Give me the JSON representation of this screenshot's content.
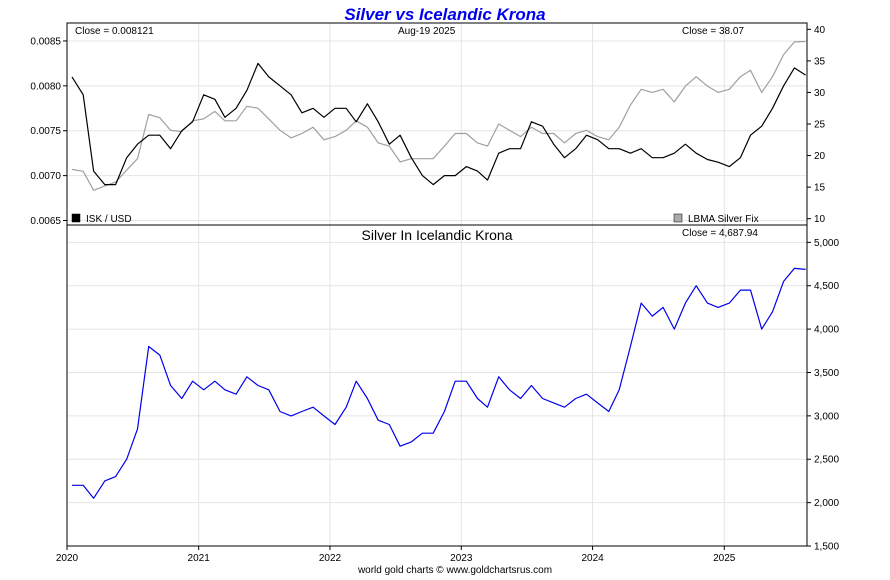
{
  "title": "Silver vs Icelandic Krona",
  "footer": "world gold charts © www.goldchartsrus.com",
  "colors": {
    "title": "#0000ee",
    "isk": "#000000",
    "silver_usd": "#a0a0a0",
    "silver_isk": "#0000ee",
    "grid": "#e4e4e4"
  },
  "chart_data": [
    {
      "type": "line",
      "panel": "top",
      "title": "",
      "date_label": "Aug-19  2025",
      "x_categories": [
        "2020",
        "2021",
        "2022",
        "2023",
        "2024",
        "2025"
      ],
      "xlim": [
        "2020-01-01",
        "2025-08-19"
      ],
      "left_axis": {
        "ylim": [
          0.00645,
          0.0087
        ],
        "ticks": [
          "0.0065",
          "0.0070",
          "0.0075",
          "0.0080",
          "0.0085"
        ]
      },
      "right_axis": {
        "ylim": [
          9,
          41
        ],
        "ticks": [
          "10",
          "15",
          "20",
          "25",
          "30",
          "35",
          "40"
        ]
      },
      "left_close": "Close = 0.008121",
      "right_close": "Close = 38.07",
      "legend": [
        {
          "name": "ISK / USD",
          "color": "#000000"
        },
        {
          "name": "LBMA Silver Fix",
          "color": "#aaaaaa"
        }
      ],
      "legend_placement": "bottom-left and bottom-right",
      "grid": true,
      "series": [
        {
          "name": "ISK / USD",
          "axis": "left",
          "x": [
            "2020-01",
            "2020-02",
            "2020-03",
            "2020-04",
            "2020-05",
            "2020-06",
            "2020-07",
            "2020-08",
            "2020-09",
            "2020-10",
            "2020-11",
            "2020-12",
            "2021-01",
            "2021-02",
            "2021-03",
            "2021-04",
            "2021-05",
            "2021-06",
            "2021-07",
            "2021-08",
            "2021-09",
            "2021-10",
            "2021-11",
            "2021-12",
            "2022-01",
            "2022-02",
            "2022-03",
            "2022-04",
            "2022-05",
            "2022-06",
            "2022-07",
            "2022-08",
            "2022-09",
            "2022-10",
            "2022-11",
            "2022-12",
            "2023-01",
            "2023-02",
            "2023-03",
            "2023-04",
            "2023-05",
            "2023-06",
            "2023-07",
            "2023-08",
            "2023-09",
            "2023-10",
            "2023-11",
            "2023-12",
            "2024-01",
            "2024-02",
            "2024-03",
            "2024-04",
            "2024-05",
            "2024-06",
            "2024-07",
            "2024-08",
            "2024-09",
            "2024-10",
            "2024-11",
            "2024-12",
            "2025-01",
            "2025-02",
            "2025-03",
            "2025-04",
            "2025-05",
            "2025-06",
            "2025-07",
            "2025-08"
          ],
          "values": [
            0.0081,
            0.0079,
            0.00705,
            0.0069,
            0.0069,
            0.0072,
            0.00735,
            0.00745,
            0.00745,
            0.0073,
            0.0075,
            0.0076,
            0.0079,
            0.00785,
            0.00765,
            0.00775,
            0.00795,
            0.00825,
            0.0081,
            0.008,
            0.0079,
            0.0077,
            0.00775,
            0.00765,
            0.00775,
            0.00775,
            0.0076,
            0.0078,
            0.0076,
            0.00735,
            0.00745,
            0.0072,
            0.007,
            0.0069,
            0.007,
            0.007,
            0.0071,
            0.00705,
            0.00695,
            0.00725,
            0.0073,
            0.0073,
            0.0076,
            0.00755,
            0.00735,
            0.0072,
            0.0073,
            0.00745,
            0.0074,
            0.0073,
            0.0073,
            0.00725,
            0.0073,
            0.0072,
            0.0072,
            0.00725,
            0.00735,
            0.00725,
            0.00718,
            0.00715,
            0.0071,
            0.0072,
            0.00745,
            0.00755,
            0.00775,
            0.008,
            0.0082,
            0.00812
          ]
        },
        {
          "name": "LBMA Silver Fix",
          "axis": "right",
          "x": [
            "2020-01",
            "2020-02",
            "2020-03",
            "2020-04",
            "2020-05",
            "2020-06",
            "2020-07",
            "2020-08",
            "2020-09",
            "2020-10",
            "2020-11",
            "2020-12",
            "2021-01",
            "2021-02",
            "2021-03",
            "2021-04",
            "2021-05",
            "2021-06",
            "2021-07",
            "2021-08",
            "2021-09",
            "2021-10",
            "2021-11",
            "2021-12",
            "2022-01",
            "2022-02",
            "2022-03",
            "2022-04",
            "2022-05",
            "2022-06",
            "2022-07",
            "2022-08",
            "2022-09",
            "2022-10",
            "2022-11",
            "2022-12",
            "2023-01",
            "2023-02",
            "2023-03",
            "2023-04",
            "2023-05",
            "2023-06",
            "2023-07",
            "2023-08",
            "2023-09",
            "2023-10",
            "2023-11",
            "2023-12",
            "2024-01",
            "2024-02",
            "2024-03",
            "2024-04",
            "2024-05",
            "2024-06",
            "2024-07",
            "2024-08",
            "2024-09",
            "2024-10",
            "2024-11",
            "2024-12",
            "2025-01",
            "2025-02",
            "2025-03",
            "2025-04",
            "2025-05",
            "2025-06",
            "2025-07",
            "2025-08"
          ],
          "values": [
            17.8,
            17.5,
            14.5,
            15.2,
            15.8,
            17.7,
            19.5,
            26.5,
            26.0,
            24.0,
            23.8,
            25.5,
            25.8,
            27.0,
            25.5,
            25.5,
            27.8,
            27.5,
            25.8,
            24.0,
            22.8,
            23.5,
            24.5,
            22.5,
            23.0,
            24.0,
            25.5,
            24.5,
            22.0,
            21.5,
            19.0,
            19.5,
            19.5,
            19.5,
            21.5,
            23.5,
            23.5,
            22.0,
            21.5,
            25.0,
            24.0,
            23.0,
            24.5,
            23.5,
            23.5,
            22.0,
            23.5,
            24.0,
            23.0,
            22.5,
            24.5,
            28.0,
            30.5,
            30.0,
            30.5,
            28.5,
            31.0,
            32.5,
            31.0,
            30.0,
            30.5,
            32.5,
            33.5,
            30.0,
            32.5,
            36.0,
            38.0,
            38.07
          ]
        }
      ]
    },
    {
      "type": "line",
      "panel": "bottom",
      "title": "Silver In Icelandic Krona",
      "close": "Close = 4,687.94",
      "x_categories": [
        "2020",
        "2021",
        "2022",
        "2023",
        "2024",
        "2025"
      ],
      "xlim": [
        "2020-01-01",
        "2025-08-19"
      ],
      "right_axis": {
        "ylim": [
          1500,
          5200
        ],
        "ticks": [
          "1,500",
          "2,000",
          "2,500",
          "3,000",
          "3,500",
          "4,000",
          "4,500",
          "5,000"
        ]
      },
      "grid": true,
      "series": [
        {
          "name": "Silver In Icelandic Krona",
          "axis": "right",
          "x": [
            "2020-01",
            "2020-02",
            "2020-03",
            "2020-04",
            "2020-05",
            "2020-06",
            "2020-07",
            "2020-08",
            "2020-09",
            "2020-10",
            "2020-11",
            "2020-12",
            "2021-01",
            "2021-02",
            "2021-03",
            "2021-04",
            "2021-05",
            "2021-06",
            "2021-07",
            "2021-08",
            "2021-09",
            "2021-10",
            "2021-11",
            "2021-12",
            "2022-01",
            "2022-02",
            "2022-03",
            "2022-04",
            "2022-05",
            "2022-06",
            "2022-07",
            "2022-08",
            "2022-09",
            "2022-10",
            "2022-11",
            "2022-12",
            "2023-01",
            "2023-02",
            "2023-03",
            "2023-04",
            "2023-05",
            "2023-06",
            "2023-07",
            "2023-08",
            "2023-09",
            "2023-10",
            "2023-11",
            "2023-12",
            "2024-01",
            "2024-02",
            "2024-03",
            "2024-04",
            "2024-05",
            "2024-06",
            "2024-07",
            "2024-08",
            "2024-09",
            "2024-10",
            "2024-11",
            "2024-12",
            "2025-01",
            "2025-02",
            "2025-03",
            "2025-04",
            "2025-05",
            "2025-06",
            "2025-07",
            "2025-08"
          ],
          "values": [
            2200,
            2200,
            2050,
            2250,
            2300,
            2500,
            2850,
            3800,
            3700,
            3350,
            3200,
            3400,
            3300,
            3400,
            3300,
            3250,
            3450,
            3350,
            3300,
            3050,
            3000,
            3050,
            3100,
            3000,
            2900,
            3100,
            3400,
            3200,
            2950,
            2900,
            2650,
            2700,
            2800,
            2800,
            3050,
            3400,
            3400,
            3200,
            3100,
            3450,
            3300,
            3200,
            3350,
            3200,
            3150,
            3100,
            3200,
            3250,
            3150,
            3050,
            3300,
            3800,
            4300,
            4150,
            4250,
            4000,
            4300,
            4500,
            4300,
            4250,
            4300,
            4450,
            4450,
            4000,
            4200,
            4550,
            4700,
            4688
          ]
        }
      ]
    }
  ]
}
